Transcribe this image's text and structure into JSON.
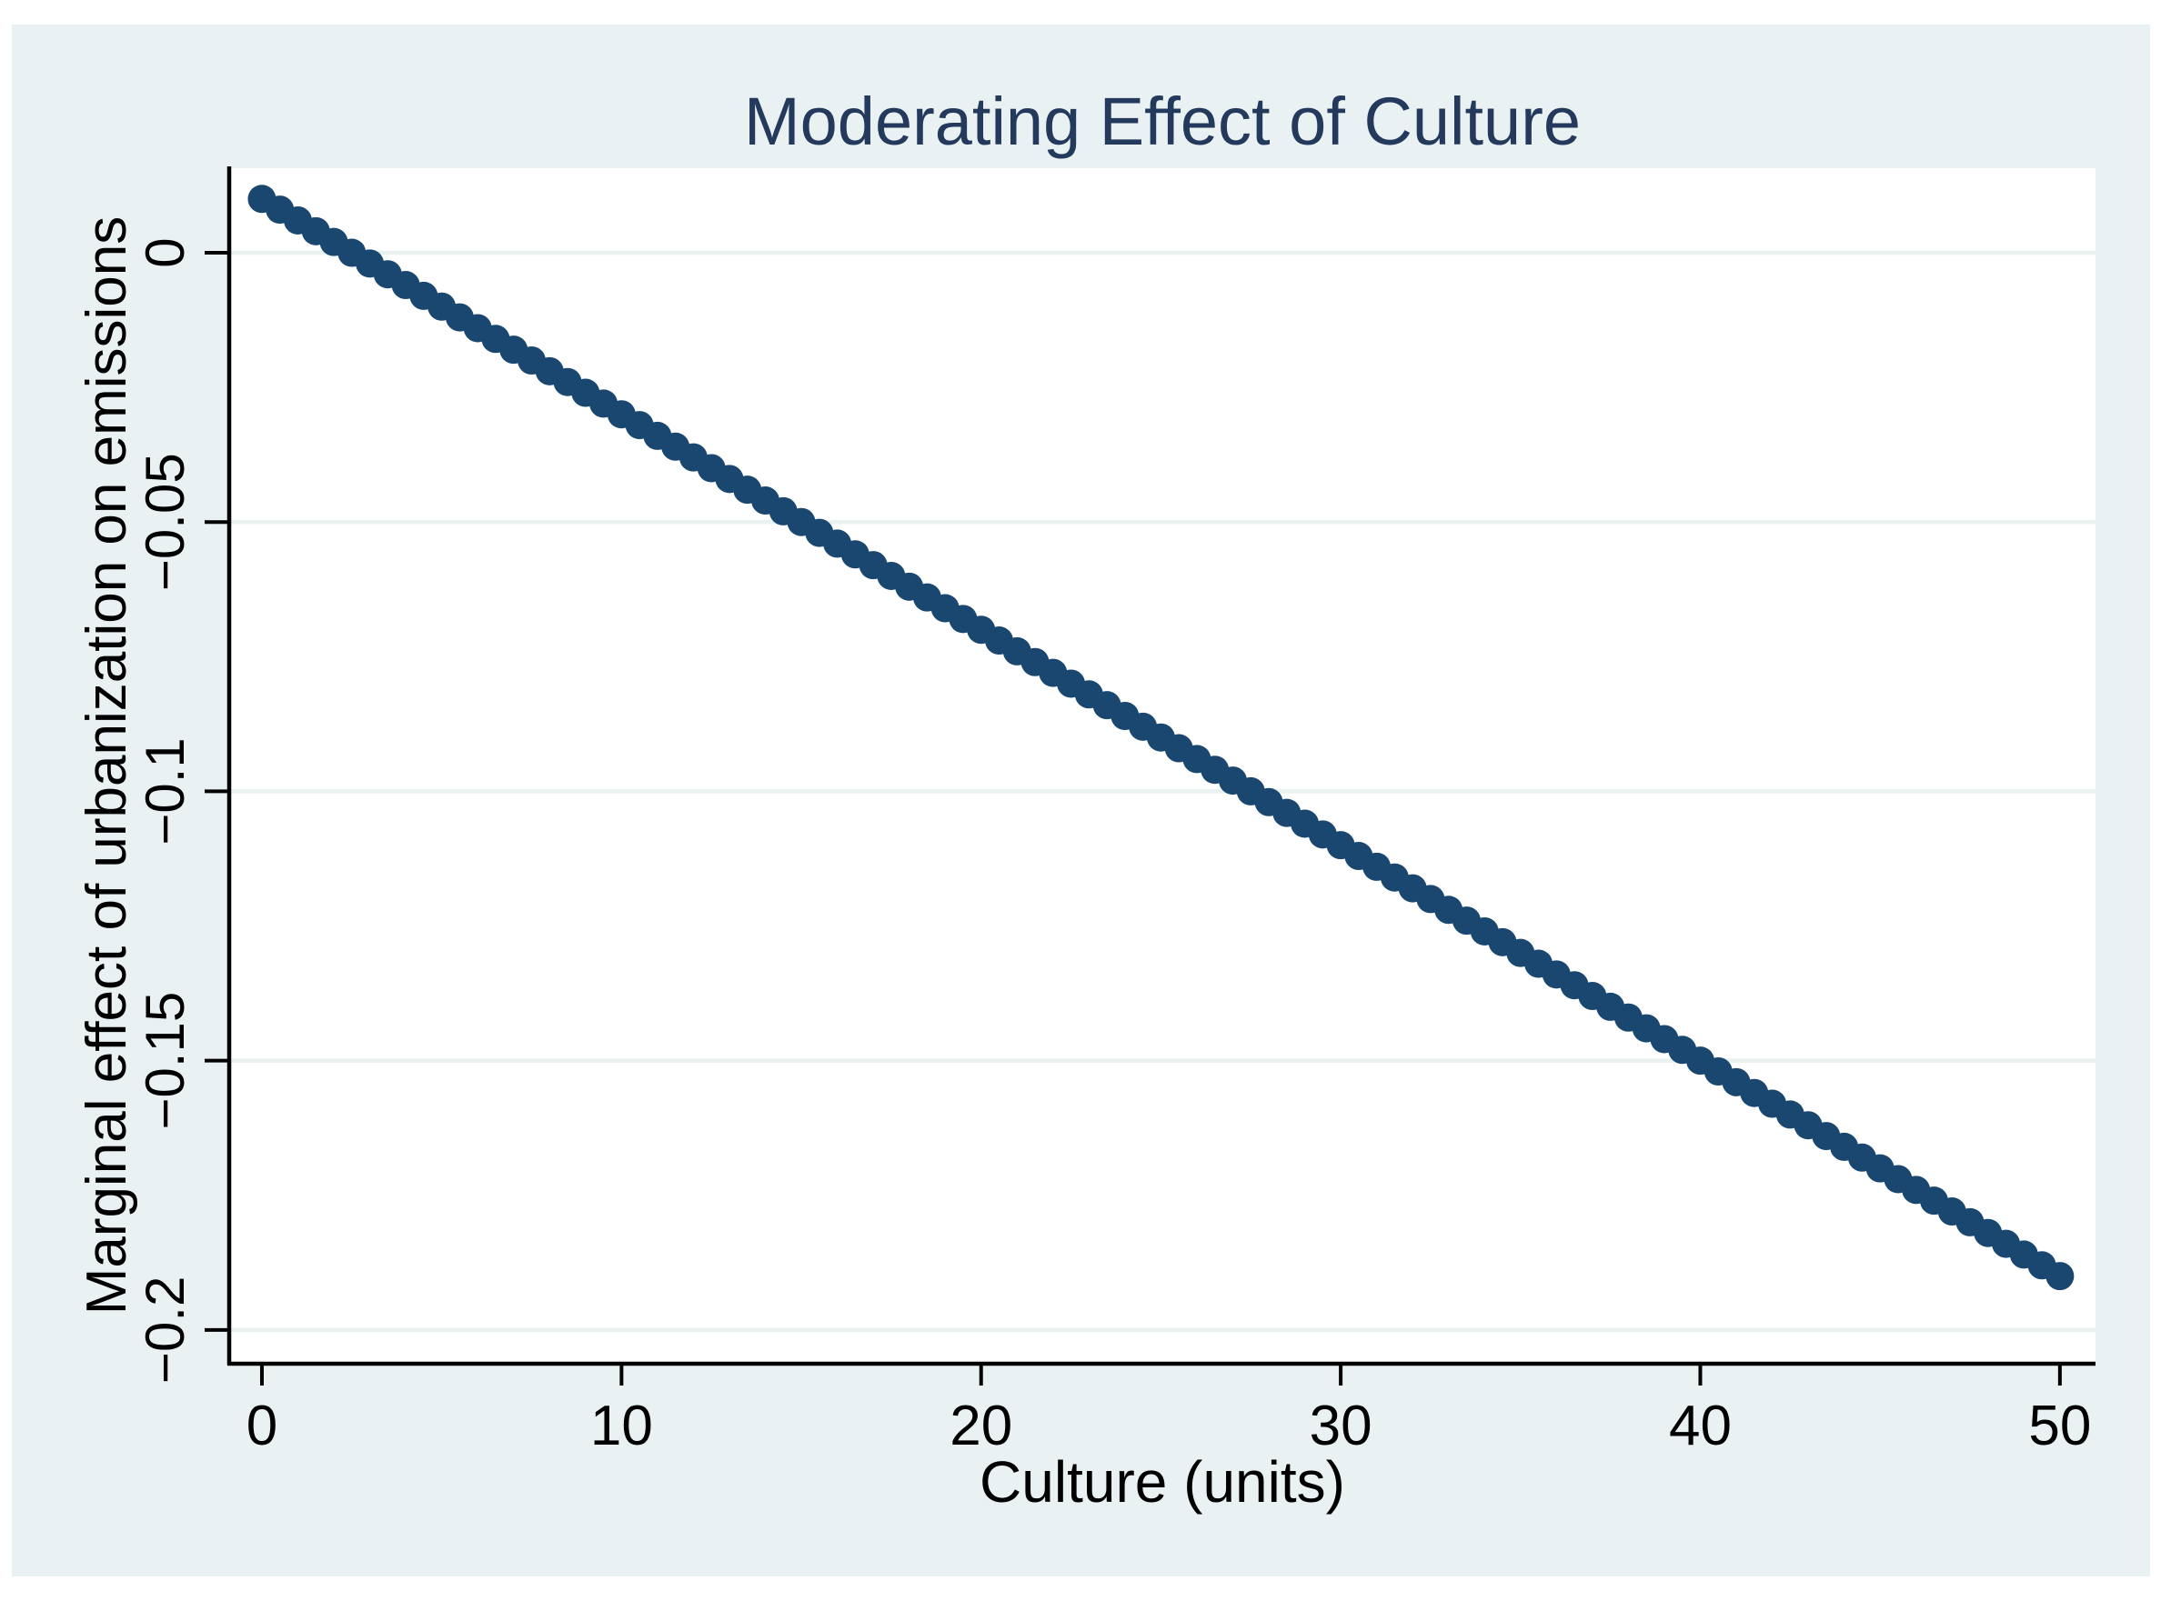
{
  "colors": {
    "page_background": "#ffffff",
    "graph_background": "#eaf1f3",
    "plot_background": "#ffffff",
    "gridline": "#e9f1f1",
    "axis": "#000000",
    "tick_text": "#000000",
    "marker": "#1a476f",
    "title": "#243a5c"
  },
  "chart_data": {
    "type": "scatter",
    "title": "Moderating Effect of Culture",
    "xlabel": "Culture (units)",
    "ylabel": "Marginal effect of urbanization on emissions",
    "grid": "horizontal",
    "legend": "none",
    "xlim": [
      -0.91,
      50.99
    ],
    "ylim": [
      -0.2061,
      0.0157
    ],
    "x_ticks": [
      0,
      10,
      20,
      30,
      40,
      50
    ],
    "x_tick_labels": [
      "0",
      "10",
      "20",
      "30",
      "40",
      "50"
    ],
    "y_ticks": [
      0,
      -0.05,
      -0.1,
      -0.15,
      -0.2
    ],
    "y_tick_labels": [
      "0",
      "−0.05",
      "−0.1",
      "−0.15",
      "−0.2"
    ],
    "series": [
      {
        "name": "marginal effect of urbanization on emissions",
        "marker": "circle",
        "x": [
          0,
          0.5,
          1,
          1.5,
          2,
          2.5,
          3,
          3.5,
          4,
          4.5,
          5,
          5.5,
          6,
          6.5,
          7,
          7.5,
          8,
          8.5,
          9,
          9.5,
          10,
          10.5,
          11,
          11.5,
          12,
          12.5,
          13,
          13.5,
          14,
          14.5,
          15,
          15.5,
          16,
          16.5,
          17,
          17.5,
          18,
          18.5,
          19,
          19.5,
          20,
          20.5,
          21,
          21.5,
          22,
          22.5,
          23,
          23.5,
          24,
          24.5,
          25,
          25.5,
          26,
          26.5,
          27,
          27.5,
          28,
          28.5,
          29,
          29.5,
          30,
          30.5,
          31,
          31.5,
          32,
          32.5,
          33,
          33.5,
          34,
          34.5,
          35,
          35.5,
          36,
          36.5,
          37,
          37.5,
          38,
          38.5,
          39,
          39.5,
          40,
          40.5,
          41,
          41.5,
          42,
          42.5,
          43,
          43.5,
          44,
          44.5,
          45,
          45.5,
          46,
          46.5,
          47,
          47.5,
          48,
          48.5,
          49,
          49.5,
          50
        ],
        "y": [
          0.01,
          0.008,
          0.006,
          0.004,
          0.002,
          0,
          -0.002,
          -0.004,
          -0.006,
          -0.008,
          -0.01,
          -0.012,
          -0.014,
          -0.016,
          -0.018,
          -0.02,
          -0.022,
          -0.024,
          -0.026,
          -0.028,
          -0.03,
          -0.032,
          -0.034,
          -0.036,
          -0.038,
          -0.04,
          -0.042,
          -0.044,
          -0.046,
          -0.048,
          -0.05,
          -0.052,
          -0.054,
          -0.056,
          -0.058,
          -0.06,
          -0.062,
          -0.064,
          -0.066,
          -0.068,
          -0.07,
          -0.072,
          -0.074,
          -0.076,
          -0.078,
          -0.08,
          -0.082,
          -0.084,
          -0.086,
          -0.088,
          -0.09,
          -0.092,
          -0.094,
          -0.096,
          -0.098,
          -0.1,
          -0.102,
          -0.104,
          -0.106,
          -0.108,
          -0.11,
          -0.112,
          -0.114,
          -0.116,
          -0.118,
          -0.12,
          -0.122,
          -0.124,
          -0.126,
          -0.128,
          -0.13,
          -0.132,
          -0.134,
          -0.136,
          -0.138,
          -0.14,
          -0.142,
          -0.144,
          -0.146,
          -0.148,
          -0.15,
          -0.152,
          -0.154,
          -0.156,
          -0.158,
          -0.16,
          -0.162,
          -0.164,
          -0.166,
          -0.168,
          -0.17,
          -0.172,
          -0.174,
          -0.176,
          -0.178,
          -0.18,
          -0.182,
          -0.184,
          -0.186,
          -0.188,
          -0.19
        ]
      }
    ]
  }
}
